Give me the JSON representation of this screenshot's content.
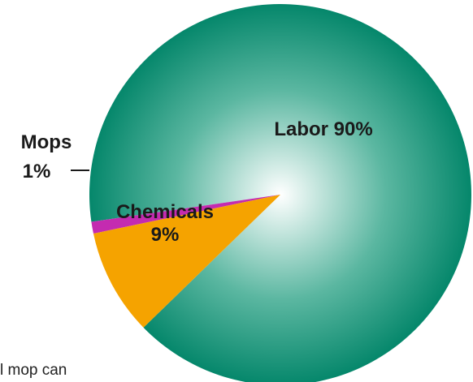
{
  "chart_data": {
    "type": "pie",
    "title": "",
    "slices": [
      {
        "name": "Labor",
        "value": 90,
        "label": "Labor 90%",
        "color": "#05876b"
      },
      {
        "name": "Mops",
        "value": 1,
        "label_name": "Mops",
        "label_value": "1%",
        "color": "#c42bb0"
      },
      {
        "name": "Chemicals",
        "value": 9,
        "label_name": "Chemicals",
        "label_value": "9%",
        "color": "#f5a300"
      }
    ],
    "legend": "none"
  },
  "caption_fragment": "l mop can"
}
